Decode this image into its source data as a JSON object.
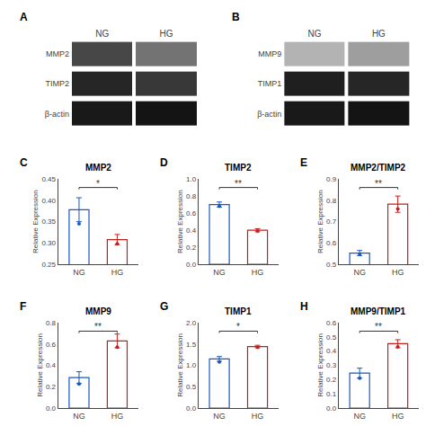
{
  "chart_data": [
    {
      "type": "blot",
      "categories": [
        "NG",
        "HG"
      ],
      "rows": [
        "MMP2",
        "TIMP2",
        "β-actin"
      ],
      "values": [
        [
          0.72,
          0.55
        ],
        [
          0.85,
          0.78
        ],
        [
          0.9,
          0.92
        ]
      ],
      "zlim": [
        0,
        1
      ],
      "annotations": [
        "A"
      ]
    },
    {
      "type": "blot",
      "categories": [
        "NG",
        "HG"
      ],
      "rows": [
        "MMP9",
        "TIMP1",
        "β-actin"
      ],
      "values": [
        [
          0.3,
          0.38
        ],
        [
          0.88,
          0.85
        ],
        [
          0.9,
          0.92
        ]
      ],
      "zlim": [
        0,
        1
      ],
      "annotations": [
        "B"
      ]
    },
    {
      "type": "bar",
      "title": "MMP2",
      "ylabel": "Relative Expression",
      "categories": [
        "NG",
        "HG"
      ],
      "values": [
        0.378,
        0.308
      ],
      "errors": [
        0.028,
        0.012
      ],
      "dots": [
        0.345,
        0.298
      ],
      "colors": [
        "#1a56c4",
        "#c0201e"
      ],
      "ylim": [
        0.25,
        0.45
      ],
      "yticks": [
        0.25,
        {
          "value": 0.3,
          "label": "0.30"
        },
        0.35,
        {
          "value": 0.4,
          "label": "0.40"
        },
        0.45
      ],
      "grid": false,
      "annotations": [
        "C",
        "*"
      ]
    },
    {
      "type": "bar",
      "title": "TIMP2",
      "ylabel": "Relative Expression",
      "categories": [
        "NG",
        "HG"
      ],
      "values": [
        0.7,
        0.4
      ],
      "errors": [
        0.03,
        0.018
      ],
      "dots": [
        0.68,
        0.392
      ],
      "colors": [
        "#1a56c4",
        "#c0201e"
      ],
      "ylim": [
        0.0,
        1.0
      ],
      "yticks": [
        {
          "value": 0,
          "label": "0.0"
        },
        0.2,
        0.4,
        0.6,
        0.8,
        {
          "value": 1,
          "label": "1.0"
        }
      ],
      "grid": false,
      "annotations": [
        "D",
        "**"
      ]
    },
    {
      "type": "bar",
      "title": "MMP2/TIMP2",
      "ylabel": "Relative Expression",
      "categories": [
        "NG",
        "HG"
      ],
      "values": [
        0.553,
        0.782
      ],
      "errors": [
        0.012,
        0.038
      ],
      "dots": [
        0.548,
        0.76
      ],
      "colors": [
        "#1a56c4",
        "#c0201e"
      ],
      "ylim": [
        0.5,
        0.9
      ],
      "yticks": [
        0.5,
        0.6,
        0.7,
        0.8,
        0.9
      ],
      "grid": false,
      "annotations": [
        "E",
        "**"
      ]
    },
    {
      "type": "bar",
      "title": "MMP9",
      "ylabel": "Relative Expression",
      "categories": [
        "NG",
        "HG"
      ],
      "values": [
        0.285,
        0.628
      ],
      "errors": [
        0.055,
        0.065
      ],
      "dots": [
        0.225,
        0.57
      ],
      "colors": [
        "#1a56c4",
        "#c0201e"
      ],
      "ylim": [
        0.0,
        0.8
      ],
      "yticks": [
        {
          "value": 0,
          "label": "0.0"
        },
        0.2,
        0.4,
        0.6,
        0.8
      ],
      "grid": false,
      "annotations": [
        "F",
        "**"
      ]
    },
    {
      "type": "bar",
      "title": "TIMP1",
      "ylabel": "Relative Expression",
      "categories": [
        "NG",
        "HG"
      ],
      "values": [
        1.15,
        1.44
      ],
      "errors": [
        0.055,
        0.03
      ],
      "dots": [
        1.08,
        1.42
      ],
      "colors": [
        "#1a56c4",
        "#c0201e"
      ],
      "ylim": [
        0.0,
        2.0
      ],
      "yticks": [
        {
          "value": 0,
          "label": "0.0"
        },
        0.5,
        {
          "value": 1,
          "label": "1.0"
        },
        1.5,
        {
          "value": 2,
          "label": "2.0"
        }
      ],
      "grid": false,
      "annotations": [
        "G",
        "*"
      ]
    },
    {
      "type": "bar",
      "title": "MMP9/TIMP1",
      "ylabel": "Relative Expression",
      "categories": [
        "NG",
        "HG"
      ],
      "values": [
        0.245,
        0.452
      ],
      "errors": [
        0.035,
        0.028
      ],
      "dots": [
        0.21,
        0.43
      ],
      "colors": [
        "#1a56c4",
        "#c0201e"
      ],
      "ylim": [
        0.0,
        0.6
      ],
      "yticks": [
        {
          "value": 0,
          "label": "0.0"
        },
        0.1,
        0.2,
        0.3,
        0.4,
        0.5,
        0.6
      ],
      "grid": false,
      "annotations": [
        "H",
        "**"
      ]
    }
  ]
}
